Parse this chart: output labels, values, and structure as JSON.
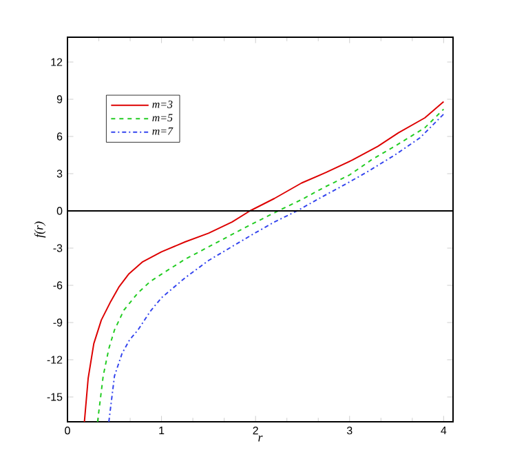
{
  "chart_data": {
    "type": "line",
    "xlabel": "r",
    "ylabel": "f(r)",
    "xlim": [
      0,
      4.1
    ],
    "ylim": [
      -17,
      14
    ],
    "xticks": [
      0,
      1,
      2,
      3,
      4
    ],
    "yticks": [
      -15,
      -12,
      -9,
      -6,
      -3,
      0,
      3,
      6,
      9,
      12
    ],
    "legend": "top left",
    "ref_lines": [
      {
        "axis": "y",
        "value": 0,
        "color": "#000000"
      }
    ],
    "series": [
      {
        "name": "m=3",
        "color": "#dd0000",
        "line_style": "solid",
        "x": [
          0.18,
          0.22,
          0.28,
          0.36,
          0.46,
          0.55,
          0.65,
          0.8,
          1,
          1.25,
          1.5,
          1.75,
          1.94,
          2.2,
          2.49,
          2.75,
          3.03,
          3.3,
          3.52,
          3.8,
          4
        ],
        "values": [
          -17,
          -13.5,
          -10.7,
          -8.8,
          -7.3,
          -6.1,
          -5.1,
          -4.1,
          -3.3,
          -2.5,
          -1.8,
          -0.9,
          0,
          1.0,
          2.25,
          3.1,
          4.1,
          5.2,
          6.3,
          7.5,
          8.8
        ]
      },
      {
        "name": "m=5",
        "color": "#22cc22",
        "line_style": "dashed",
        "x": [
          0.32,
          0.38,
          0.44,
          0.5,
          0.6,
          0.75,
          0.88,
          1,
          1.25,
          1.5,
          1.9,
          2.24,
          2.5,
          2.73,
          3.0,
          3.23,
          3.5,
          3.8,
          4
        ],
        "values": [
          -17,
          -13.3,
          -11.1,
          -9.6,
          -8.0,
          -6.6,
          -5.7,
          -5.1,
          -3.9,
          -2.9,
          -1.3,
          0,
          0.95,
          1.9,
          2.9,
          4.1,
          5.3,
          6.7,
          8.2
        ]
      },
      {
        "name": "m=7",
        "color": "#3344ee",
        "line_style": "dashdot",
        "x": [
          0.44,
          0.5,
          0.58,
          0.66,
          0.75,
          0.88,
          1,
          1.25,
          1.5,
          1.99,
          2.2,
          2.44,
          2.7,
          2.98,
          3.2,
          3.48,
          3.75,
          4
        ],
        "values": [
          -17,
          -13.3,
          -11.5,
          -10.4,
          -9.6,
          -8.1,
          -7.0,
          -5.4,
          -4.0,
          -1.8,
          -0.9,
          0,
          1.1,
          2.25,
          3.2,
          4.5,
          5.9,
          7.8
        ]
      }
    ]
  }
}
